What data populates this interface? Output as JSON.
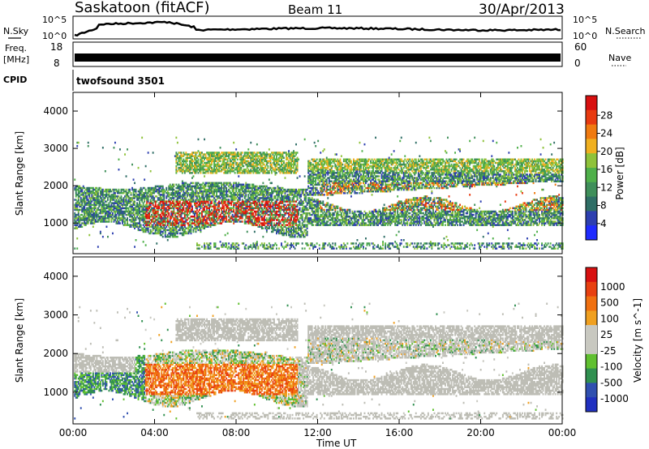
{
  "header": {
    "title": "Saskatoon (fitACF)",
    "beam": "Beam 11",
    "date": "30/Apr/2013"
  },
  "top_panels": {
    "nsky_label": "N.Sky",
    "nsky_high": "10^5",
    "nsky_low": "10^0",
    "nsearch_label": "N.Search",
    "freq_label": "Freq.",
    "freq_unit": "[MHz]",
    "freq_high": "18",
    "freq_low": "8",
    "nave_high": "60",
    "nave_low": "0",
    "nave_label": "Nave",
    "cpid_label": "CPID",
    "cpid_value": "twofsound 3501"
  },
  "colors": {
    "power_scale": [
      "#1f2bff",
      "#2d3fb0",
      "#2f6e66",
      "#3f8f5a",
      "#4fb04a",
      "#8fc23a",
      "#f0b020",
      "#f07a10",
      "#e83a10",
      "#d81010"
    ],
    "velocity_scale": [
      "#2030c0",
      "#3050b0",
      "#309050",
      "#60c030",
      "#c8c8c0",
      "#c8c8c0",
      "#f0a020",
      "#f07010",
      "#e84010",
      "#d81010"
    ],
    "ground_scatter": "#bdbdb5"
  },
  "chart_data": [
    {
      "type": "heatmap",
      "name": "power",
      "ylabel": "Slant Range [km]",
      "yticks": [
        "1000",
        "2000",
        "3000",
        "4000"
      ],
      "xticks": [
        "00:00",
        "04:00",
        "08:00",
        "12:00",
        "16:00",
        "20:00",
        "00:00"
      ],
      "colorbar_label": "Power [dB]",
      "colorbar_ticks": [
        "4",
        "8",
        "12",
        "16",
        "20",
        "24",
        "28"
      ],
      "ylim": [
        180,
        4500
      ],
      "xlim": [
        0,
        24
      ]
    },
    {
      "type": "heatmap",
      "name": "velocity",
      "ylabel": "Slant Range [km]",
      "yticks": [
        "1000",
        "2000",
        "3000",
        "4000"
      ],
      "xticks": [
        "00:00",
        "04:00",
        "08:00",
        "12:00",
        "16:00",
        "20:00",
        "00:00"
      ],
      "colorbar_label": "Velocity [m s^-1]",
      "colorbar_ticks": [
        "1000",
        "500",
        "100",
        "25",
        "-25",
        "-100",
        "-500",
        "-1000"
      ],
      "ylim": [
        180,
        4500
      ],
      "xlim": [
        0,
        24
      ]
    }
  ],
  "xlabel": "Time UT"
}
